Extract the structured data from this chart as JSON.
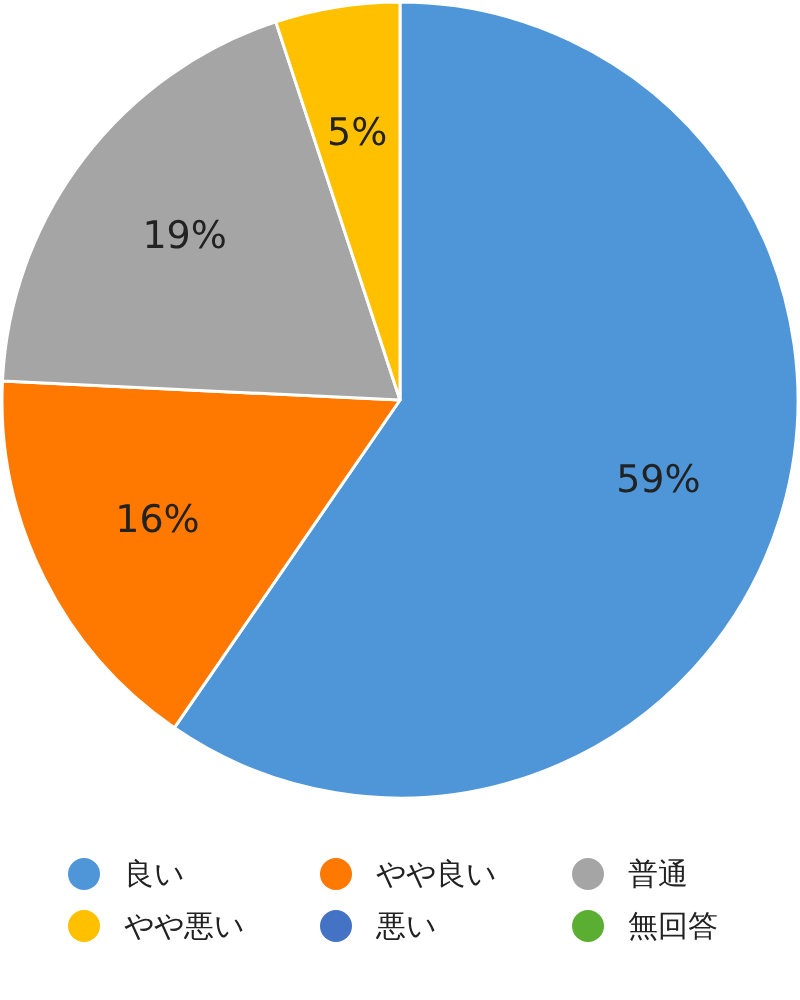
{
  "chart_data": {
    "type": "pie",
    "categories": [
      "良い",
      "やや良い",
      "普通",
      "やや悪い",
      "悪い",
      "無回答"
    ],
    "values": [
      59,
      16,
      19,
      5,
      0,
      0
    ],
    "colors": [
      "#4e96d8",
      "#ff7800",
      "#a5a5a5",
      "#ffc000",
      "#4472c4",
      "#5aae32"
    ],
    "value_labels": [
      "59%",
      "16%",
      "19%",
      "5%",
      null,
      null
    ],
    "legend": "bottom"
  }
}
